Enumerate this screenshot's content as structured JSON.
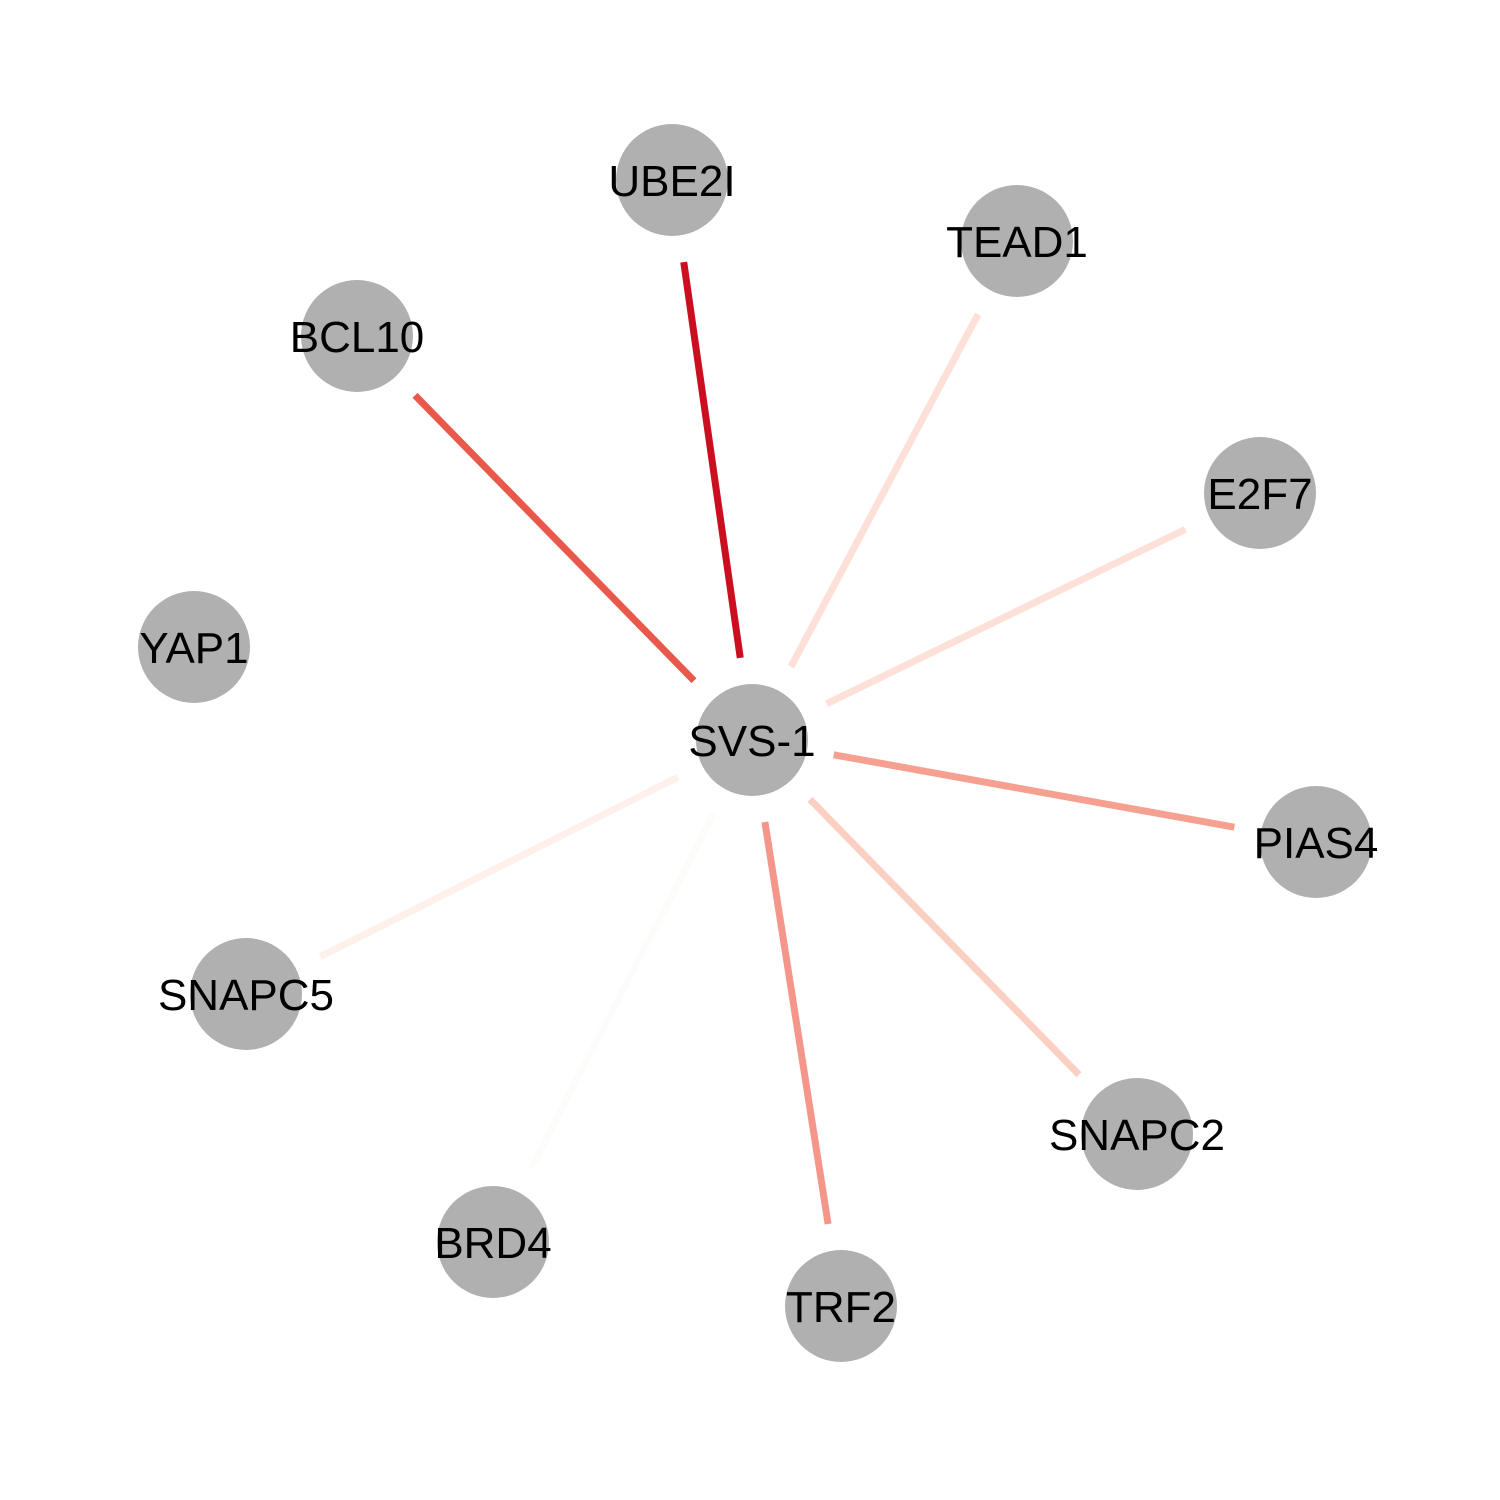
{
  "graph": {
    "center": "SVS-1",
    "node_color": "#b0b0b0",
    "nodes": [
      {
        "id": "SVS-1",
        "label": "SVS-1"
      },
      {
        "id": "UBE2I",
        "label": "UBE2I"
      },
      {
        "id": "TEAD1",
        "label": "TEAD1"
      },
      {
        "id": "BCL10",
        "label": "BCL10"
      },
      {
        "id": "E2F7",
        "label": "E2F7"
      },
      {
        "id": "YAP1",
        "label": "YAP1"
      },
      {
        "id": "PIAS4",
        "label": "PIAS4"
      },
      {
        "id": "SNAPC5",
        "label": "SNAPC5"
      },
      {
        "id": "SNAPC2",
        "label": "SNAPC2"
      },
      {
        "id": "BRD4",
        "label": "BRD4"
      },
      {
        "id": "TRF2",
        "label": "TRF2"
      }
    ],
    "edges": [
      {
        "source": "SVS-1",
        "target": "UBE2I",
        "color": "#cb0e20"
      },
      {
        "source": "SVS-1",
        "target": "BCL10",
        "color": "#e8594b"
      },
      {
        "source": "SVS-1",
        "target": "TEAD1",
        "color": "#fde0d8"
      },
      {
        "source": "SVS-1",
        "target": "E2F7",
        "color": "#fde0d8"
      },
      {
        "source": "SVS-1",
        "target": "PIAS4",
        "color": "#f6a091"
      },
      {
        "source": "SVS-1",
        "target": "SNAPC2",
        "color": "#fbd0c3"
      },
      {
        "source": "SVS-1",
        "target": "TRF2",
        "color": "#f4978a"
      },
      {
        "source": "SVS-1",
        "target": "BRD4",
        "color": "#fefcfb"
      },
      {
        "source": "SVS-1",
        "target": "SNAPC5",
        "color": "#fff0ec"
      }
    ]
  }
}
